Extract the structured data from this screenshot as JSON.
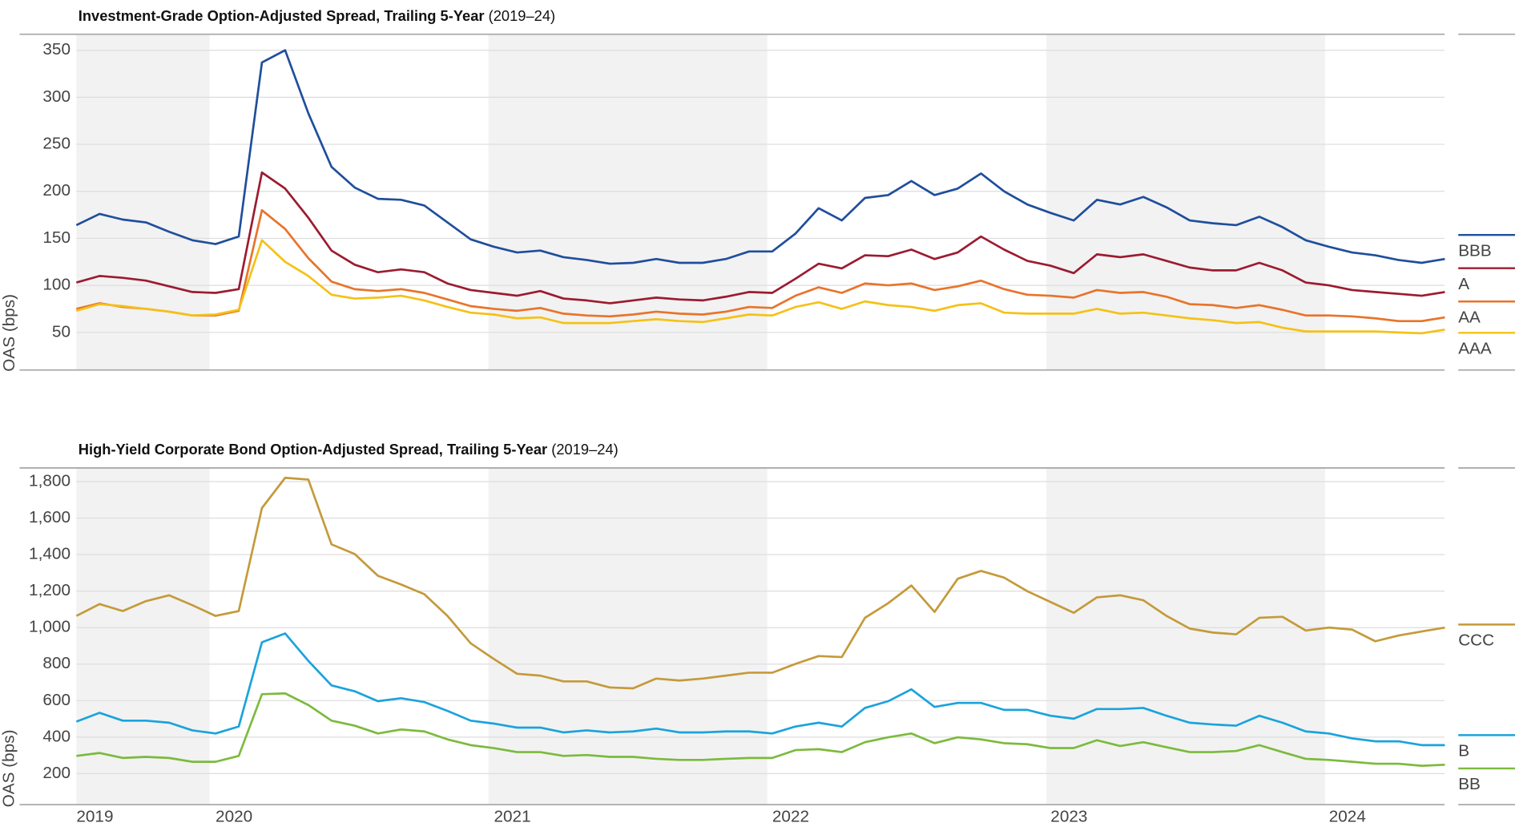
{
  "chart_data": [
    {
      "type": "line",
      "title": "Investment-Grade Option-Adjusted Spread, Trailing 5-Year",
      "title_note": "(2019–24)",
      "y_label": "OAS (bps)",
      "ylim": [
        10,
        367
      ],
      "yticks": [
        50,
        100,
        150,
        200,
        250,
        300,
        350
      ],
      "grid": true,
      "series": [
        {
          "name": "BBB",
          "color": "#1f4e9c",
          "values": [
            164,
            176,
            170,
            167,
            157,
            148,
            144,
            152,
            337,
            350,
            283,
            226,
            204,
            192,
            191,
            185,
            167,
            149,
            141,
            135,
            137,
            130,
            127,
            123,
            124,
            128,
            124,
            124,
            128,
            136,
            136,
            155,
            182,
            169,
            193,
            196,
            211,
            196,
            203,
            219,
            200,
            186,
            177,
            169,
            191,
            186,
            194,
            183,
            169,
            166,
            164,
            173,
            162,
            148,
            141,
            135,
            132,
            127,
            124,
            128
          ]
        },
        {
          "name": "A",
          "color": "#9b1b30",
          "values": [
            103,
            110,
            108,
            105,
            99,
            93,
            92,
            96,
            220,
            203,
            172,
            137,
            122,
            114,
            117,
            114,
            102,
            95,
            92,
            89,
            94,
            86,
            84,
            81,
            84,
            87,
            85,
            84,
            88,
            93,
            92,
            107,
            123,
            118,
            132,
            131,
            138,
            128,
            135,
            152,
            138,
            126,
            121,
            113,
            133,
            130,
            133,
            126,
            119,
            116,
            116,
            124,
            116,
            103,
            100,
            95,
            93,
            91,
            89,
            93
          ]
        },
        {
          "name": "AA",
          "color": "#e8742a",
          "values": [
            75,
            81,
            77,
            75,
            72,
            68,
            68,
            73,
            180,
            160,
            129,
            104,
            96,
            94,
            96,
            92,
            85,
            78,
            75,
            73,
            76,
            70,
            68,
            67,
            69,
            72,
            70,
            69,
            72,
            77,
            76,
            89,
            98,
            92,
            102,
            100,
            102,
            95,
            99,
            105,
            96,
            90,
            89,
            87,
            95,
            92,
            93,
            88,
            80,
            79,
            76,
            79,
            74,
            68,
            68,
            67,
            65,
            62,
            62,
            66
          ]
        },
        {
          "name": "AAA",
          "color": "#f5c116",
          "values": [
            73,
            80,
            78,
            75,
            72,
            68,
            69,
            74,
            148,
            125,
            110,
            90,
            86,
            87,
            89,
            84,
            77,
            71,
            69,
            65,
            66,
            60,
            60,
            60,
            62,
            64,
            62,
            61,
            65,
            69,
            68,
            77,
            82,
            75,
            83,
            79,
            77,
            73,
            79,
            81,
            71,
            70,
            70,
            70,
            75,
            70,
            71,
            68,
            65,
            63,
            60,
            61,
            55,
            51,
            51,
            51,
            51,
            50,
            49,
            53
          ]
        }
      ]
    },
    {
      "type": "line",
      "title": "High-Yield Corporate Bond Option-Adjusted Spread, Trailing 5-Year",
      "title_note": "(2019–24)",
      "y_label": "OAS (bps)",
      "ylim": [
        30,
        1875
      ],
      "yticks": [
        200,
        400,
        600,
        800,
        {
          "value": 1000,
          "label": "1,000"
        },
        {
          "value": 1200,
          "label": "1,200"
        },
        {
          "value": 1400,
          "label": "1,400"
        },
        {
          "value": 1600,
          "label": "1,600"
        },
        {
          "value": 1800,
          "label": "1,800"
        }
      ],
      "grid": true,
      "categories": [
        "2019",
        null,
        null,
        null,
        null,
        null,
        "2020",
        null,
        null,
        null,
        null,
        null,
        null,
        null,
        null,
        null,
        null,
        null,
        "2021",
        null,
        null,
        null,
        null,
        null,
        null,
        null,
        null,
        null,
        null,
        null,
        "2022",
        null,
        null,
        null,
        null,
        null,
        null,
        null,
        null,
        null,
        null,
        null,
        "2023",
        null,
        null,
        null,
        null,
        null,
        null,
        null,
        null,
        null,
        null,
        null,
        "2024",
        null,
        null,
        null,
        null,
        null
      ],
      "series": [
        {
          "name": "CCC",
          "color": "#c49a3a",
          "values": [
            1064,
            1129,
            1091,
            1145,
            1177,
            1123,
            1064,
            1091,
            1655,
            1821,
            1811,
            1456,
            1403,
            1284,
            1236,
            1183,
            1064,
            914,
            828,
            747,
            737,
            705,
            705,
            672,
            667,
            721,
            710,
            721,
            737,
            753,
            753,
            801,
            844,
            839,
            1054,
            1134,
            1231,
            1086,
            1268,
            1311,
            1274,
            1199,
            1140,
            1081,
            1166,
            1177,
            1150,
            1064,
            995,
            973,
            963,
            1054,
            1059,
            984,
            1000,
            989,
            925,
            957,
            979,
            1000
          ]
        },
        {
          "name": "B",
          "color": "#1aa3dc",
          "values": [
            485,
            533,
            490,
            490,
            479,
            437,
            420,
            458,
            920,
            968,
            818,
            683,
            651,
            597,
            613,
            592,
            544,
            490,
            474,
            452,
            452,
            426,
            437,
            426,
            431,
            447,
            426,
            426,
            431,
            431,
            420,
            458,
            479,
            458,
            560,
            597,
            662,
            565,
            587,
            587,
            549,
            549,
            517,
            501,
            554,
            554,
            560,
            517,
            479,
            469,
            463,
            517,
            479,
            431,
            420,
            393,
            377,
            377,
            356,
            356
          ]
        },
        {
          "name": "BB",
          "color": "#7cba3d",
          "values": [
            297,
            313,
            286,
            292,
            286,
            265,
            265,
            297,
            635,
            640,
            576,
            490,
            463,
            420,
            442,
            431,
            388,
            356,
            340,
            318,
            318,
            297,
            302,
            292,
            292,
            281,
            275,
            275,
            281,
            286,
            286,
            329,
            334,
            318,
            372,
            399,
            420,
            367,
            399,
            388,
            367,
            361,
            340,
            340,
            383,
            351,
            372,
            345,
            318,
            318,
            324,
            356,
            318,
            281,
            275,
            265,
            254,
            254,
            243,
            249
          ]
        }
      ]
    }
  ]
}
